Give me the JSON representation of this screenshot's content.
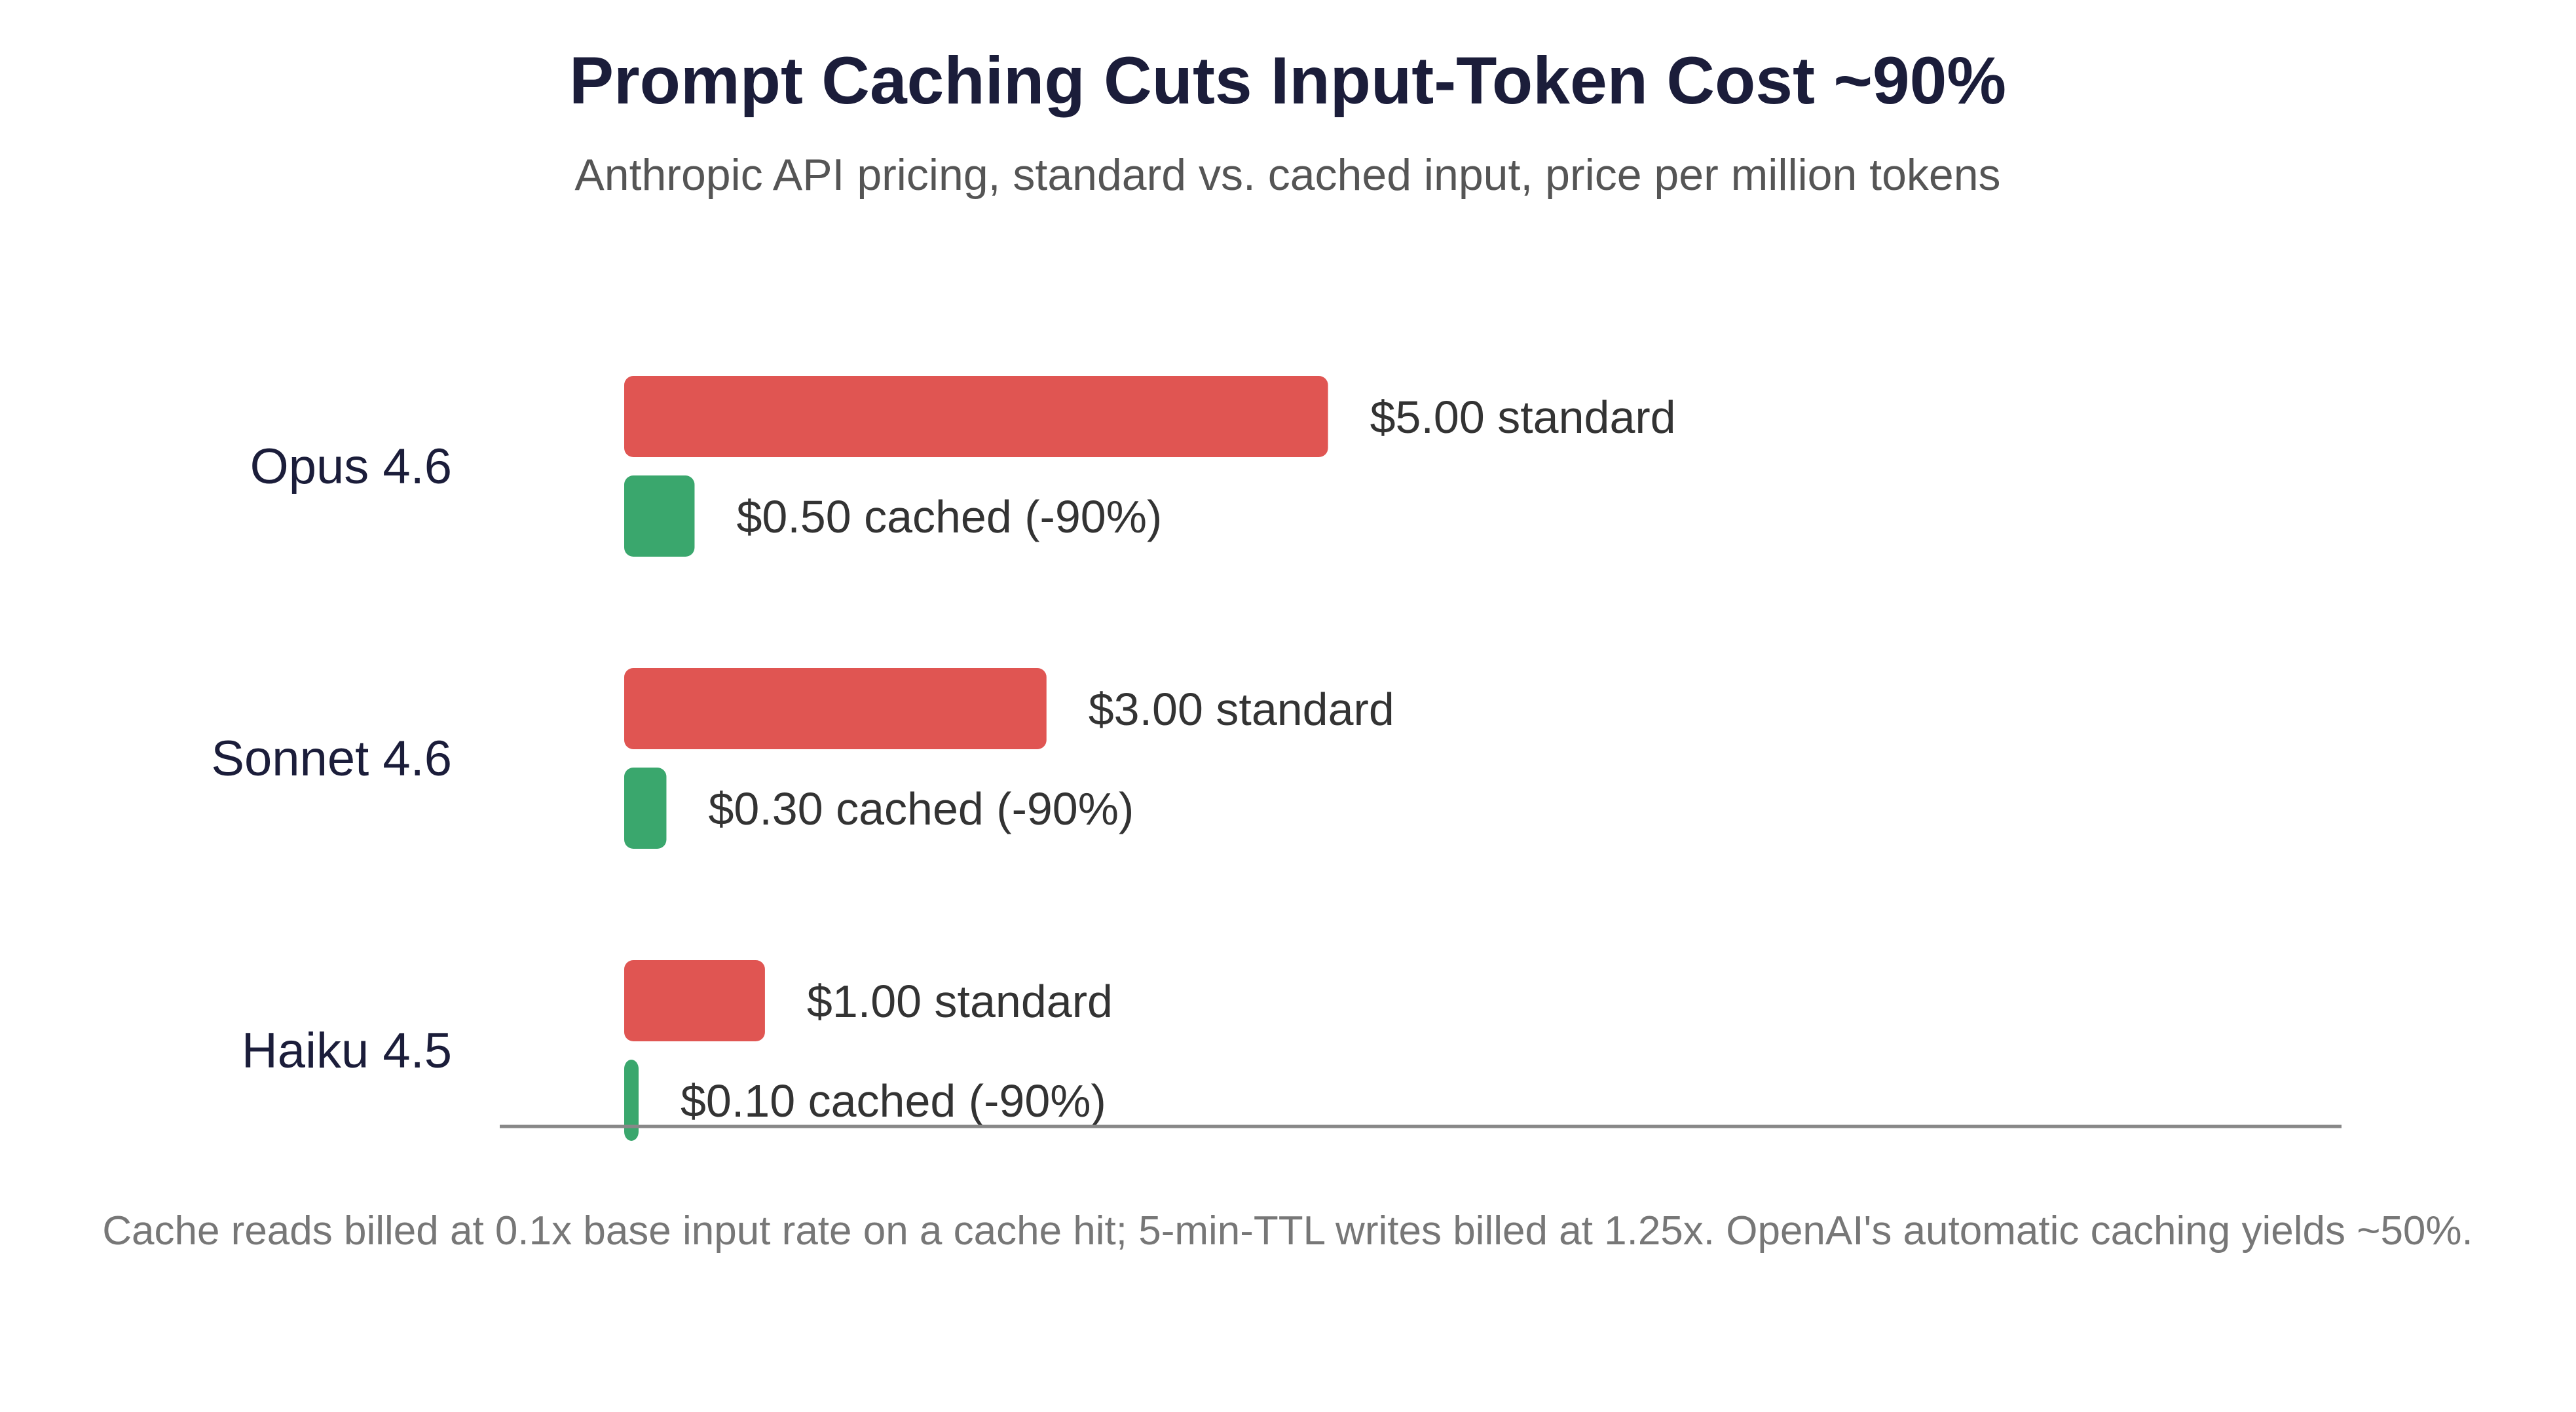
{
  "chart_data": {
    "type": "bar",
    "orientation": "horizontal",
    "title": "Prompt Caching Cuts Input-Token Cost ~90%",
    "subtitle": "Anthropic API pricing, standard vs. cached input, price per million tokens",
    "categories": [
      "Opus 4.6",
      "Sonnet 4.6",
      "Haiku 4.5"
    ],
    "series": [
      {
        "key": "standard",
        "values": [
          5.0,
          3.0,
          1.0
        ],
        "labels": [
          "$5.00 standard",
          "$3.00 standard",
          "$1.00 standard"
        ],
        "color": "#e05552"
      },
      {
        "key": "cached",
        "values": [
          0.5,
          0.3,
          0.1
        ],
        "labels": [
          "$0.50 cached (-90%)",
          "$0.30 cached (-90%)",
          "$0.10 cached (-90%)"
        ],
        "color": "#3aa76d"
      }
    ],
    "xlim": [
      0,
      12.2
    ],
    "grid": false,
    "legend": "none",
    "footnote": "Cache reads billed at 0.1x base input rate on a cache hit; 5-min-TTL writes billed at 1.25x. OpenAI's automatic caching yields ~50%."
  },
  "colors": {
    "axis": "#888888",
    "title": "#1b1d3a",
    "subtitle": "#555555",
    "footnote": "#777777"
  }
}
